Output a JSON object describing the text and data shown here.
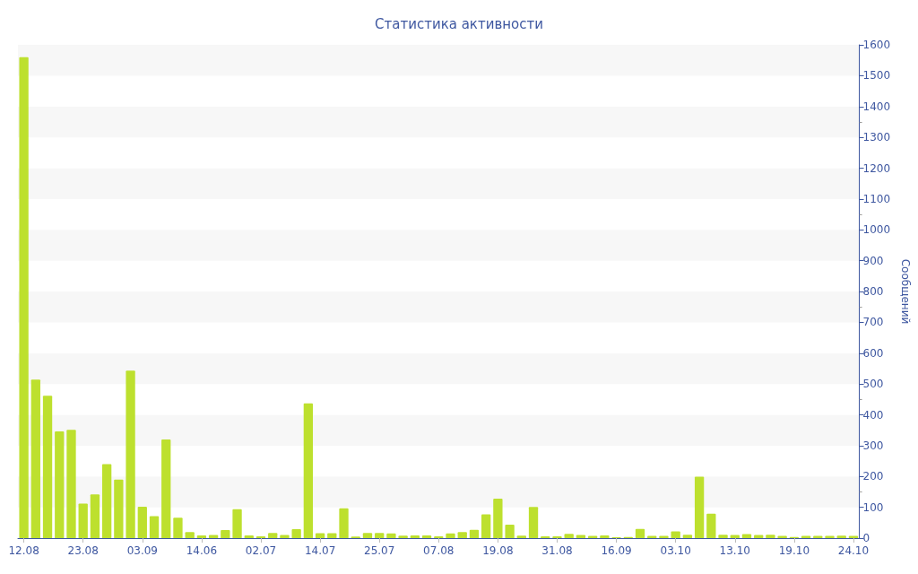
{
  "chart_data": {
    "type": "bar",
    "title": "Статистика активности",
    "ylabel": "Сообщений",
    "categories": [
      "12.08",
      null,
      null,
      null,
      null,
      "23.08",
      null,
      null,
      null,
      null,
      "03.09",
      null,
      null,
      null,
      null,
      "14.06",
      null,
      null,
      null,
      null,
      "02.07",
      null,
      null,
      null,
      null,
      "14.07",
      null,
      null,
      null,
      null,
      "25.07",
      null,
      null,
      null,
      null,
      "07.08",
      null,
      null,
      null,
      null,
      "19.08",
      null,
      null,
      null,
      null,
      "31.08",
      null,
      null,
      null,
      null,
      "16.09",
      null,
      null,
      null,
      null,
      "03.10",
      null,
      null,
      null,
      null,
      "13.10",
      null,
      null,
      null,
      null,
      "19.10",
      null,
      null,
      null,
      null,
      "24.10"
    ],
    "values": [
      1560,
      514,
      462,
      346,
      351,
      112,
      142,
      240,
      190,
      543,
      102,
      71,
      320,
      66,
      20,
      9,
      10,
      26,
      94,
      9,
      6,
      17,
      10,
      29,
      437,
      16,
      16,
      97,
      5,
      17,
      17,
      15,
      8,
      9,
      9,
      6,
      15,
      20,
      27,
      77,
      128,
      44,
      8,
      101,
      6,
      6,
      14,
      10,
      7,
      9,
      3,
      4,
      30,
      7,
      7,
      22,
      11,
      199,
      79,
      11,
      10,
      13,
      10,
      11,
      7,
      4,
      7,
      7,
      7,
      8,
      7
    ],
    "color": "#bde02e",
    "ylim": [
      0,
      1600
    ],
    "yticks": [
      0,
      100,
      200,
      300,
      400,
      500,
      600,
      700,
      800,
      900,
      1000,
      1100,
      1200,
      1300,
      1400,
      1500,
      1600
    ]
  }
}
